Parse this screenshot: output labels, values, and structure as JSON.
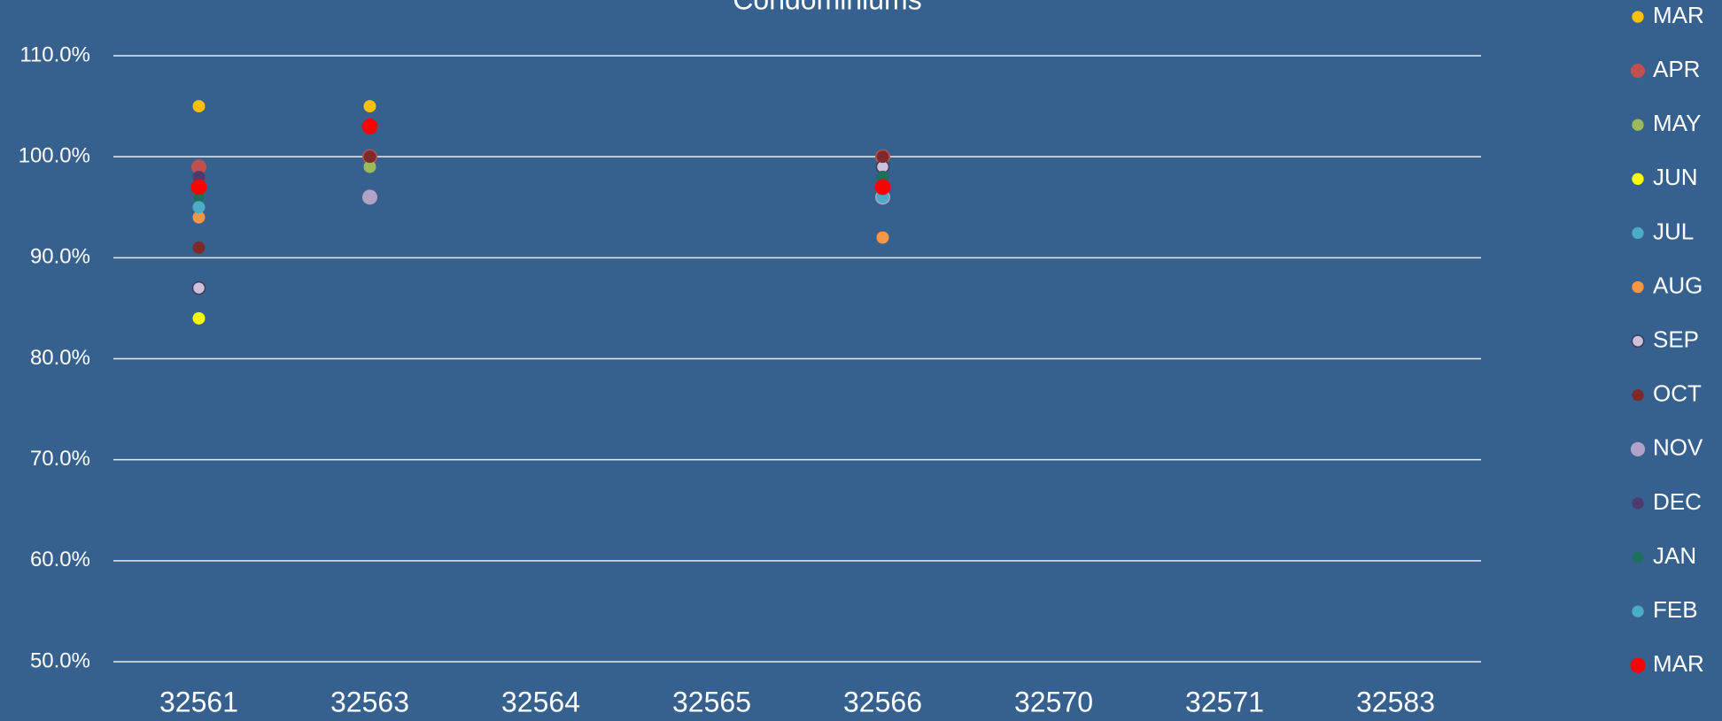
{
  "chart_data": {
    "type": "scatter",
    "title": "Condominiums",
    "categories": [
      "32561",
      "32563",
      "32564",
      "32565",
      "32566",
      "32570",
      "32571",
      "32583"
    ],
    "ylim": [
      50,
      110
    ],
    "yticks": [
      {
        "value": 50,
        "label": "50.0%"
      },
      {
        "value": 60,
        "label": "60.0%"
      },
      {
        "value": 70,
        "label": "70.0%"
      },
      {
        "value": 80,
        "label": "80.0%"
      },
      {
        "value": 90,
        "label": "90.0%"
      },
      {
        "value": 100,
        "label": "100.0%"
      },
      {
        "value": 110,
        "label": "110.0%"
      }
    ],
    "grid": true,
    "legend": "right",
    "series": [
      {
        "name": "MAR",
        "color": "#ffc000",
        "values": [
          105,
          105,
          null,
          null,
          100,
          null,
          null,
          null
        ]
      },
      {
        "name": "APR",
        "color": "#c0504d",
        "values": [
          99,
          100,
          null,
          null,
          100,
          null,
          null,
          null
        ]
      },
      {
        "name": "MAY",
        "color": "#9bbb59",
        "values": [
          96,
          99,
          null,
          null,
          100,
          null,
          null,
          null
        ]
      },
      {
        "name": "JUN",
        "color": "#ffff00",
        "values": [
          84,
          null,
          null,
          null,
          null,
          null,
          null,
          null
        ]
      },
      {
        "name": "JUL",
        "color": "#4bacc6",
        "values": [
          96,
          null,
          null,
          null,
          96,
          null,
          null,
          null
        ]
      },
      {
        "name": "AUG",
        "color": "#f79646",
        "values": [
          94,
          null,
          null,
          null,
          92,
          null,
          null,
          null
        ]
      },
      {
        "name": "SEP",
        "color": "#ccc0da",
        "values": [
          87,
          null,
          null,
          null,
          99,
          null,
          null,
          null
        ]
      },
      {
        "name": "OCT",
        "color": "#7f2a2a",
        "values": [
          91,
          100,
          null,
          null,
          100,
          null,
          null,
          null
        ]
      },
      {
        "name": "NOV",
        "color": "#b3a2c7",
        "values": [
          97,
          96,
          null,
          null,
          96,
          null,
          null,
          null
        ]
      },
      {
        "name": "DEC",
        "color": "#4f3a6e",
        "values": [
          98,
          null,
          null,
          null,
          98,
          null,
          null,
          null
        ]
      },
      {
        "name": "JAN",
        "color": "#1f6f5f",
        "values": [
          96,
          null,
          null,
          null,
          98,
          null,
          null,
          null
        ]
      },
      {
        "name": "FEB",
        "color": "#4bacc6",
        "values": [
          95,
          null,
          null,
          null,
          96,
          null,
          null,
          null
        ]
      },
      {
        "name": "MAR",
        "color": "#ff0000",
        "values": [
          97,
          103,
          null,
          null,
          97,
          null,
          null,
          null
        ]
      }
    ]
  }
}
